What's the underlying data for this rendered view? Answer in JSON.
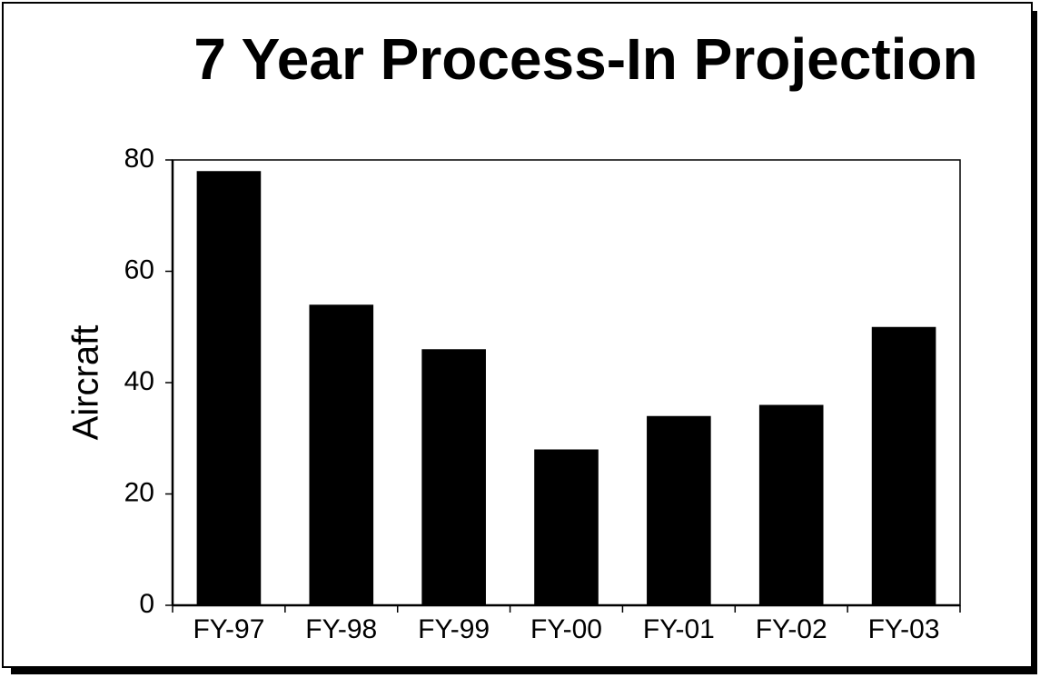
{
  "chart_data": {
    "type": "bar",
    "title": "7 Year Process-In Projection",
    "y_label": "Aircraft",
    "categories": [
      "FY-97",
      "FY-98",
      "FY-99",
      "FY-00",
      "FY-01",
      "FY-02",
      "FY-03"
    ],
    "values": [
      78,
      54,
      46,
      28,
      34,
      36,
      50
    ],
    "color": "#000000",
    "ylim": [
      0,
      80
    ],
    "yticks": [
      0,
      20,
      40,
      60,
      80
    ],
    "grid": false
  }
}
